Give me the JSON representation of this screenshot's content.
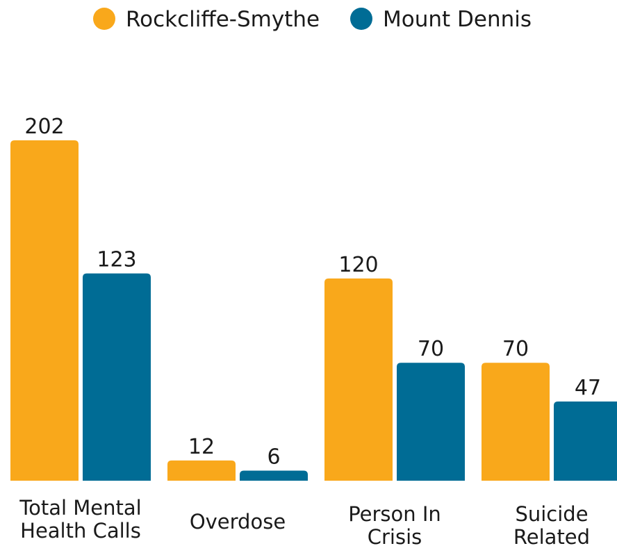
{
  "chart_data": {
    "type": "bar",
    "categories": [
      [
        "Total Mental",
        "Health Calls"
      ],
      [
        "Overdose"
      ],
      [
        "Person In",
        "Crisis"
      ],
      [
        "Suicide",
        "Related"
      ]
    ],
    "series": [
      {
        "name": "Rockcliffe-Smythe",
        "color": "#F9A81B",
        "values": [
          202,
          12,
          120,
          70
        ]
      },
      {
        "name": "Mount Dennis",
        "color": "#006C95",
        "values": [
          123,
          6,
          70,
          47
        ]
      }
    ],
    "ylim": [
      0,
      202
    ],
    "legend": "top-center",
    "grid": false
  }
}
